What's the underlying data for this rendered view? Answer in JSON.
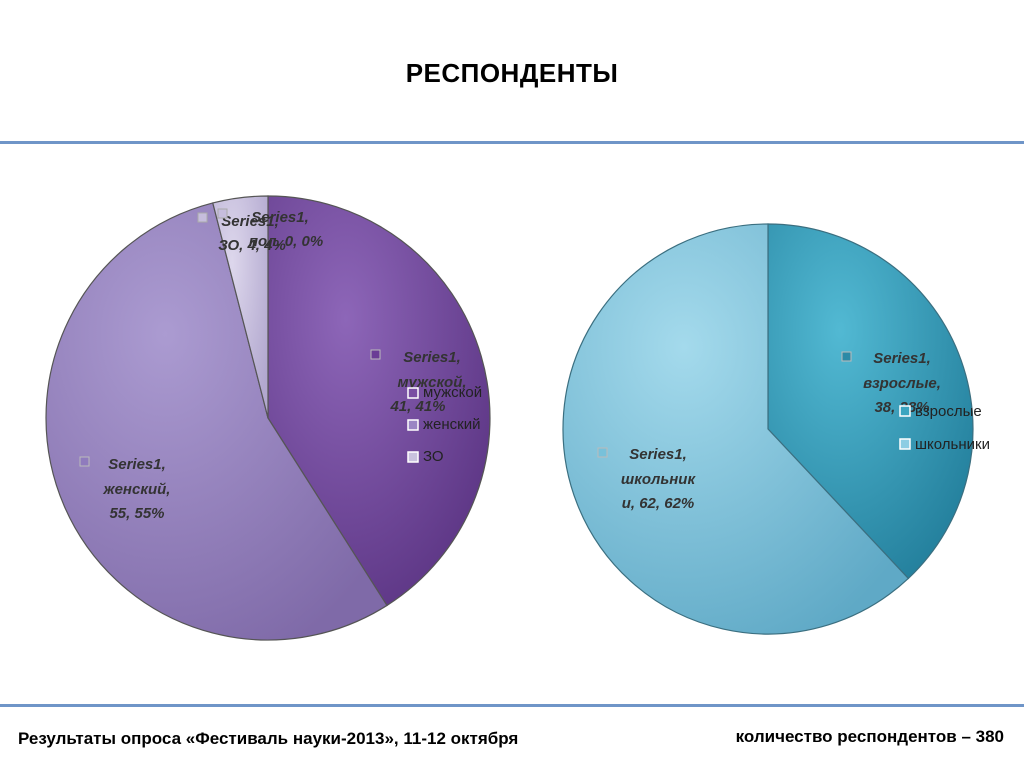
{
  "page": {
    "title": "РЕСПОНДЕНТЫ",
    "footer_left": "Результаты опроса «Фестиваль науки-2013», 11-12 октября",
    "footer_right": "количество респондентов – 380"
  },
  "chart_data": [
    {
      "type": "pie",
      "categories": [
        "мужской",
        "женский",
        "ЗО",
        "пол"
      ],
      "series": [
        {
          "name": "Series1",
          "values": [
            41,
            55,
            4,
            0
          ]
        }
      ],
      "legend": [
        "мужской",
        "женский",
        "ЗО"
      ],
      "legend_position": "right",
      "data_labels": [
        [
          "Series1,",
          "мужской,",
          "41, 41%"
        ],
        [
          "Series1,",
          "женский,",
          "55, 55%"
        ],
        [
          "Series1,",
          "ЗО, 4, 4%"
        ],
        [
          "Series1,",
          "пол, 0, 0%"
        ]
      ],
      "colors": [
        "#7a4fa3",
        "#9a86c4",
        "#c9c2de",
        "#c9c2de"
      ]
    },
    {
      "type": "pie",
      "categories": [
        "взрослые",
        "школьники"
      ],
      "series": [
        {
          "name": "Series1",
          "values": [
            38,
            62
          ]
        }
      ],
      "legend": [
        "взрослые",
        "школьники"
      ],
      "legend_position": "right",
      "data_labels": [
        [
          "Series1,",
          "взрослые,",
          "38, 38%"
        ],
        [
          "Series1,",
          "школьник",
          "и, 62, 62%"
        ]
      ],
      "colors": [
        "#3aa5c0",
        "#8ccde3"
      ]
    }
  ]
}
